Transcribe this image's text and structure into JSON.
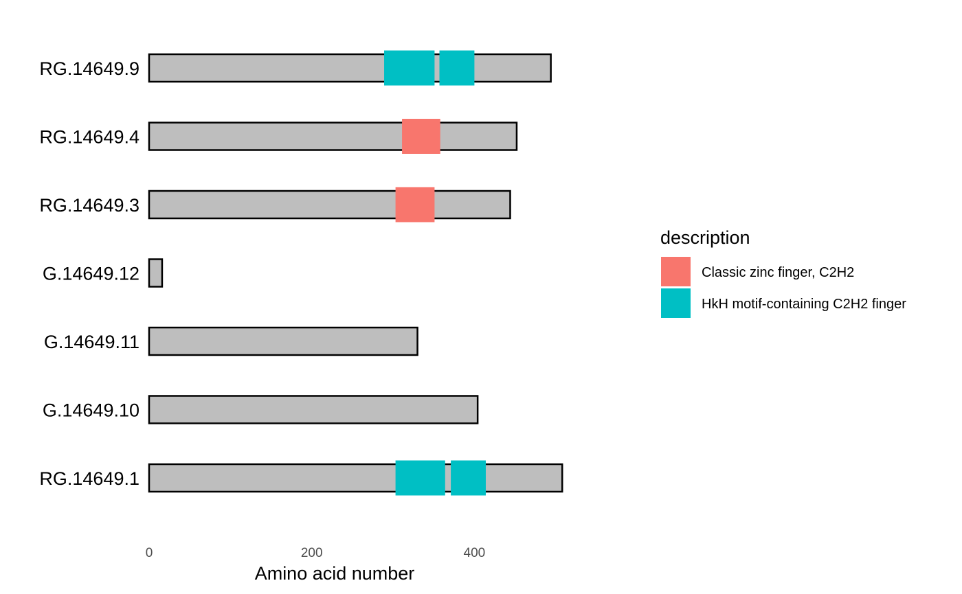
{
  "chart_data": {
    "type": "bar",
    "orientation": "horizontal",
    "xlabel": "Amino acid number",
    "ylabel": "",
    "xlim": [
      0,
      510
    ],
    "x_ticks": [
      0,
      200,
      400
    ],
    "x_tick_labels": [
      "0",
      "200",
      "400"
    ],
    "grid": false,
    "categories": [
      "RG.14649.9",
      "RG.14649.4",
      "RG.14649.3",
      "G.14649.12",
      "G.14649.11",
      "G.14649.10",
      "RG.14649.1"
    ],
    "proteins": [
      {
        "label": "RG.14649.9",
        "length": 494
      },
      {
        "label": "RG.14649.4",
        "length": 452
      },
      {
        "label": "RG.14649.3",
        "length": 444
      },
      {
        "label": "G.14649.12",
        "length": 16
      },
      {
        "label": "G.14649.11",
        "length": 330
      },
      {
        "label": "G.14649.10",
        "length": 404
      },
      {
        "label": "RG.14649.1",
        "length": 508
      }
    ],
    "domains": [
      {
        "protein": "RG.14649.9",
        "start": 289,
        "end": 351,
        "description": "HkH motif-containing C2H2 finger"
      },
      {
        "protein": "RG.14649.9",
        "start": 357,
        "end": 400,
        "description": "HkH motif-containing C2H2 finger"
      },
      {
        "protein": "RG.14649.4",
        "start": 311,
        "end": 358,
        "description": "Classic zinc finger, C2H2"
      },
      {
        "protein": "RG.14649.3",
        "start": 303,
        "end": 351,
        "description": "Classic zinc finger, C2H2"
      },
      {
        "protein": "RG.14649.1",
        "start": 303,
        "end": 364,
        "description": "HkH motif-containing C2H2 finger"
      },
      {
        "protein": "RG.14649.1",
        "start": 371,
        "end": 414,
        "description": "HkH motif-containing C2H2 finger"
      }
    ],
    "legend": {
      "title": "description",
      "position": "right",
      "items": [
        {
          "label": "Classic zinc finger, C2H2",
          "color": "#F8766D"
        },
        {
          "label": "HkH motif-containing C2H2 finger",
          "color": "#00BFC4"
        }
      ]
    },
    "colors": {
      "protein_fill": "#BEBEBE",
      "protein_stroke": "#000000"
    }
  }
}
